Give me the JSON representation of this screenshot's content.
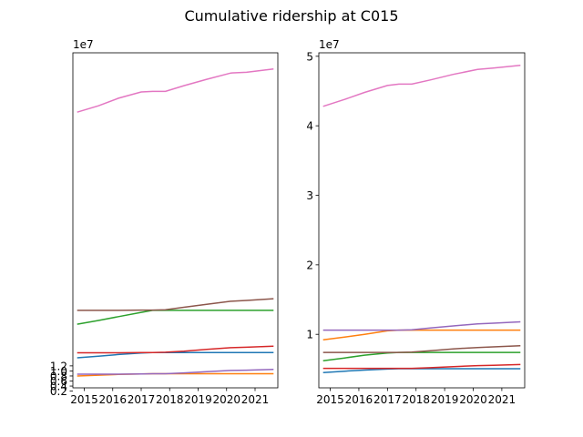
{
  "figure": {
    "title": "Cumulative ridership at C015"
  },
  "chart_data": [
    {
      "type": "line",
      "title": "",
      "xlabel": "",
      "ylabel": "",
      "offset_label": "1e7",
      "x_ticks": [
        "2015",
        "2016",
        "2017",
        "2018",
        "2019",
        "2020",
        "2021"
      ],
      "xlim": [
        2014.6,
        2021.8
      ],
      "ylim": [
        0.33,
        13.6
      ],
      "y_scale_factor": 10000000.0,
      "y_ticks": [
        0.2,
        0.4,
        0.6,
        0.8,
        1.0,
        1.2
      ],
      "y_tick_labels": [
        "0.2",
        "0.4",
        "0.6",
        "0.8",
        "1.0",
        "1.2"
      ],
      "x": [
        2014.75,
        2015.5,
        2016.2,
        2017.0,
        2017.4,
        2017.85,
        2018.5,
        2019.3,
        2020.15,
        2020.7,
        2021.65
      ],
      "series": [
        {
          "color": "#1f77b4",
          "values": [
            1.52,
            1.58,
            1.65,
            1.71,
            1.73,
            1.73,
            1.73,
            1.73,
            1.73,
            1.73,
            1.73
          ]
        },
        {
          "color": "#ff7f0e",
          "values": [
            0.8,
            0.83,
            0.86,
            0.88,
            0.89,
            0.89,
            0.89,
            0.89,
            0.89,
            0.89,
            0.89
          ]
        },
        {
          "color": "#2ca02c",
          "values": [
            2.85,
            3.0,
            3.15,
            3.32,
            3.4,
            3.4,
            3.4,
            3.4,
            3.4,
            3.4,
            3.4
          ]
        },
        {
          "color": "#d62728",
          "values": [
            1.72,
            1.72,
            1.72,
            1.73,
            1.73,
            1.74,
            1.78,
            1.85,
            1.92,
            1.94,
            1.98
          ]
        },
        {
          "color": "#9467bd",
          "values": [
            0.87,
            0.87,
            0.87,
            0.88,
            0.89,
            0.89,
            0.92,
            0.97,
            1.02,
            1.03,
            1.06
          ]
        },
        {
          "color": "#8c564b",
          "values": [
            3.4,
            3.4,
            3.4,
            3.41,
            3.41,
            3.42,
            3.52,
            3.64,
            3.76,
            3.79,
            3.86
          ]
        },
        {
          "color": "#e377c2",
          "values": [
            11.25,
            11.5,
            11.8,
            12.05,
            12.07,
            12.07,
            12.3,
            12.55,
            12.8,
            12.83,
            12.96
          ]
        }
      ]
    },
    {
      "type": "line",
      "title": "",
      "xlabel": "",
      "ylabel": "",
      "offset_label": "1e7",
      "x_ticks": [
        "2015",
        "2016",
        "2017",
        "2018",
        "2019",
        "2020",
        "2021"
      ],
      "xlim": [
        2014.6,
        2021.8
      ],
      "ylim": [
        2.3,
        50.5
      ],
      "y_scale_factor": 10000000.0,
      "y_ticks": [
        10,
        20,
        30,
        40,
        50
      ],
      "y_tick_labels": [
        "1",
        "2",
        "3",
        "4",
        "5"
      ],
      "x": [
        2014.75,
        2015.5,
        2016.2,
        2017.0,
        2017.4,
        2017.85,
        2018.5,
        2019.3,
        2020.15,
        2020.7,
        2021.65
      ],
      "series": [
        {
          "color": "#1f77b4",
          "values": [
            4.5,
            4.7,
            4.85,
            5.0,
            5.05,
            5.05,
            5.05,
            5.05,
            5.05,
            5.05,
            5.05
          ]
        },
        {
          "color": "#ff7f0e",
          "values": [
            9.2,
            9.6,
            10.0,
            10.5,
            10.6,
            10.6,
            10.6,
            10.6,
            10.6,
            10.6,
            10.6
          ]
        },
        {
          "color": "#2ca02c",
          "values": [
            6.2,
            6.6,
            7.0,
            7.3,
            7.4,
            7.4,
            7.4,
            7.4,
            7.4,
            7.4,
            7.4
          ]
        },
        {
          "color": "#d62728",
          "values": [
            5.1,
            5.1,
            5.1,
            5.1,
            5.1,
            5.1,
            5.2,
            5.35,
            5.5,
            5.55,
            5.65
          ]
        },
        {
          "color": "#9467bd",
          "values": [
            10.6,
            10.6,
            10.6,
            10.6,
            10.6,
            10.65,
            10.9,
            11.2,
            11.5,
            11.6,
            11.8
          ]
        },
        {
          "color": "#8c564b",
          "values": [
            7.4,
            7.4,
            7.4,
            7.4,
            7.4,
            7.45,
            7.65,
            7.9,
            8.1,
            8.2,
            8.35
          ]
        },
        {
          "color": "#e377c2",
          "values": [
            42.8,
            43.8,
            44.8,
            45.8,
            46.0,
            46.0,
            46.6,
            47.4,
            48.1,
            48.3,
            48.7
          ]
        }
      ]
    }
  ]
}
